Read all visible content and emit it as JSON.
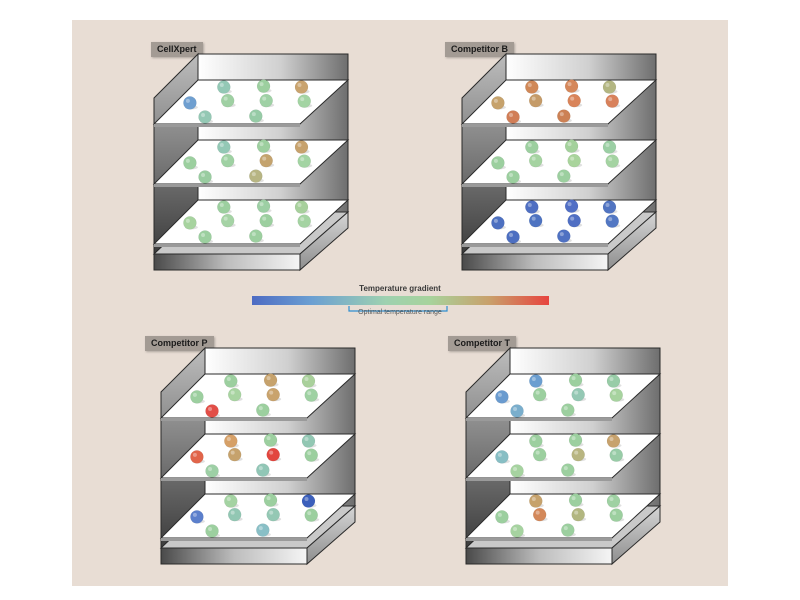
{
  "cabinets": [
    {
      "title": "CellXpert",
      "shelves": [
        [
          "#93c8b5",
          "#9ccf9f",
          "#c9a36e",
          "#6f9fd0",
          "#9fd0a3",
          "#9fd1a5",
          "#a3d4a3",
          "#94c8b4",
          "#96cba6"
        ],
        [
          "#93c8b5",
          "#9dcf9f",
          "#c7a26d",
          "#9ccf9f",
          "#9fd1a3",
          "#c4a36e",
          "#a3d4a3",
          "#99cca0",
          "#b7b583"
        ],
        [
          "#9ccf9f",
          "#9dcfa4",
          "#a7d09c",
          "#a7d39f",
          "#a5d3a5",
          "#9ccf9f",
          "#a4d3a2",
          "#9ccf9f",
          "#9ccf9f"
        ]
      ]
    },
    {
      "title": "Competitor B",
      "shelves": [
        [
          "#d08857",
          "#d5875a",
          "#b3b682",
          "#c6a26c",
          "#c59b68",
          "#d9845a",
          "#d8815b",
          "#d17e57",
          "#cc8155"
        ],
        [
          "#9ccf9f",
          "#a3d19b",
          "#9bcfa4",
          "#9ccf9f",
          "#a5d3a1",
          "#a9d49c",
          "#a4d3a2",
          "#9ccf9f",
          "#9ccf9f"
        ],
        [
          "#4f6fc2",
          "#516fc5",
          "#5174c1",
          "#4d70c0",
          "#4e73c1",
          "#506fc3",
          "#5277c3",
          "#4d6fc1",
          "#4f71c2"
        ]
      ]
    },
    {
      "title": "Competitor P",
      "shelves": [
        [
          "#9ccf9f",
          "#c6a26c",
          "#a9d09b",
          "#9ccf9f",
          "#a8d4a1",
          "#c9a36d",
          "#9fd1a3",
          "#e24e47",
          "#9ccf9f"
        ],
        [
          "#d6a067",
          "#9ccf9f",
          "#92c7b3",
          "#e1654a",
          "#c6a26c",
          "#e2463e",
          "#9ccf9f",
          "#9dcfa5",
          "#91c6b6"
        ],
        [
          "#a4d3a2",
          "#9ccf9f",
          "#3b5fbb",
          "#5b7fcc",
          "#92c7b3",
          "#94c8b4",
          "#9ccf9f",
          "#9ccf9f",
          "#89bfc6"
        ]
      ]
    },
    {
      "title": "Competitor T",
      "shelves": [
        [
          "#6b9ed0",
          "#9ccf9f",
          "#98cca7",
          "#6a9bcf",
          "#9ccf9f",
          "#94c8b4",
          "#a7d39f",
          "#7aaecc",
          "#9ccf9f"
        ],
        [
          "#9ccf9f",
          "#9ccf9f",
          "#c7a26d",
          "#87bec4",
          "#9ccf9f",
          "#b8b581",
          "#98cca7",
          "#a6d3a0",
          "#9ccf9f"
        ],
        [
          "#c6a26c",
          "#9ccf9f",
          "#9fd1a3",
          "#9ccf9f",
          "#d3885a",
          "#b2b680",
          "#9ccf9f",
          "#a6d3a0",
          "#9ccf9f"
        ]
      ]
    }
  ],
  "legend": {
    "title": "Temperature gradient",
    "subtitle": "Optimal temperature range",
    "gradient_colors": [
      "#4d6bc3",
      "#6b9fd2",
      "#9ed1b0",
      "#a7d39c",
      "#c9a06b",
      "#e7443f"
    ],
    "optimal_color": "#2e8fd0"
  }
}
